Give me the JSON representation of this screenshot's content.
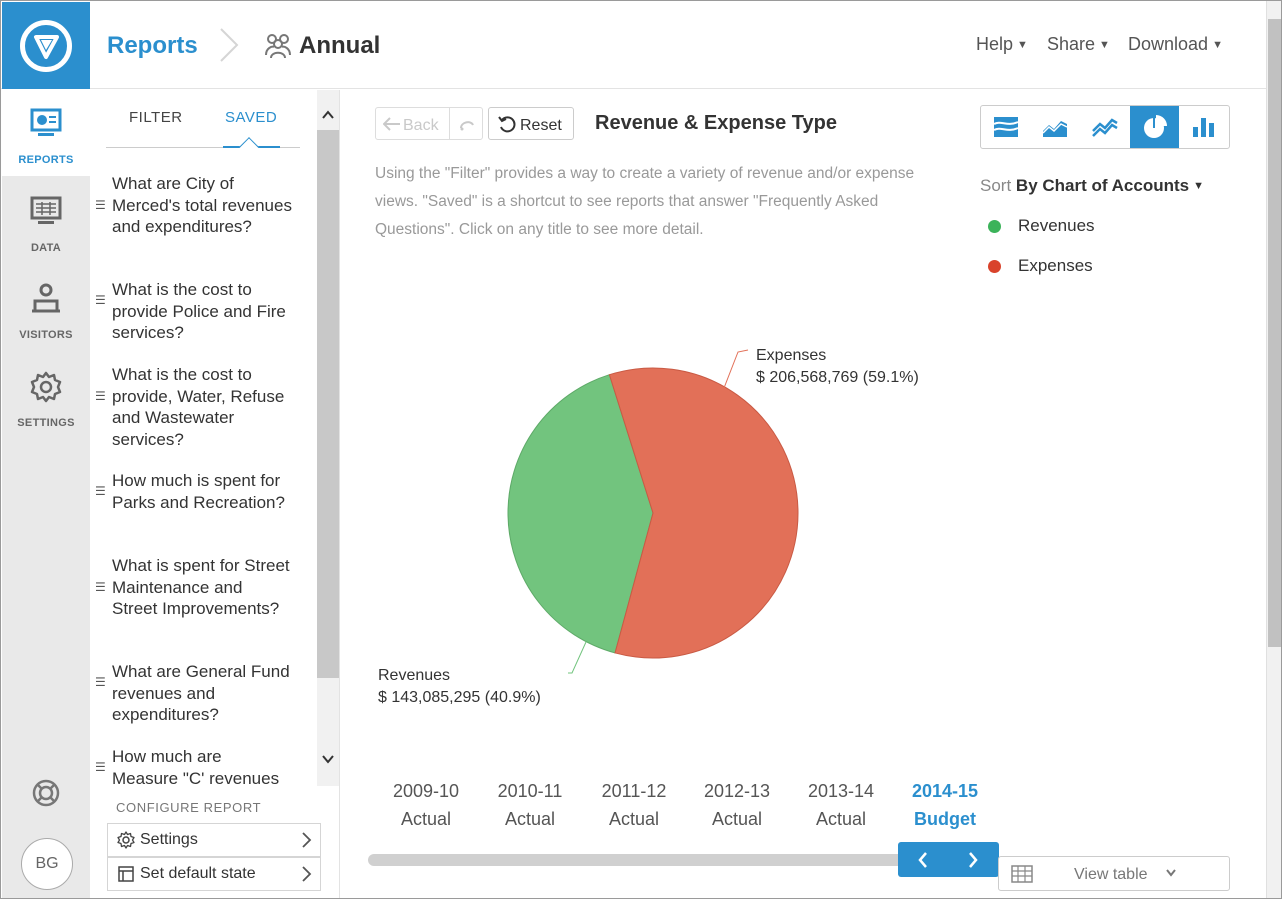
{
  "header": {
    "breadcrumb_root": "Reports",
    "breadcrumb_current": "Annual",
    "menus": [
      {
        "label": "Help"
      },
      {
        "label": "Share"
      },
      {
        "label": "Download"
      }
    ]
  },
  "leftnav": {
    "items": [
      {
        "label": "REPORTS",
        "icon": "reports-icon",
        "active": true
      },
      {
        "label": "DATA",
        "icon": "data-icon",
        "active": false
      },
      {
        "label": "VISITORS",
        "icon": "visitors-icon",
        "active": false
      },
      {
        "label": "SETTINGS",
        "icon": "gear-icon",
        "active": false
      }
    ],
    "avatar_initials": "BG"
  },
  "side": {
    "tabs": [
      {
        "label": "FILTER",
        "active": false
      },
      {
        "label": "SAVED",
        "active": true
      }
    ],
    "questions": [
      "What are City of Merced's total revenues and expenditures?",
      "What is the cost to provide Police and Fire services?",
      "What is the cost to provide, Water, Refuse and Wastewater services?",
      "How much is spent for Parks and Recreation?",
      "What is spent for Street Maintenance and Street Improvements?",
      "What are General Fund revenues and expenditures?",
      "How much are Measure \"C' revenues"
    ],
    "configure_heading": "CONFIGURE REPORT",
    "configure_buttons": [
      {
        "label": "Settings"
      },
      {
        "label": "Set default state"
      }
    ]
  },
  "toolbar": {
    "back_label": "Back",
    "reset_label": "Reset",
    "chart_title": "Revenue & Expense Type",
    "description": "Using the \"Filter\" provides a way to create a variety of revenue and/or expense views. \"Saved\" is a shortcut to see reports that answer \"Frequently Asked Questions\". Click on any title to see more detail.",
    "chart_types": [
      "stacked-area-icon",
      "area-icon",
      "line-icon",
      "pie-icon",
      "bar-icon"
    ],
    "active_chart_type": "pie-icon"
  },
  "sort": {
    "prefix": "Sort",
    "value": "By Chart of Accounts"
  },
  "chart_data": {
    "type": "pie",
    "series": [
      {
        "name": "Revenues",
        "value": 143085295,
        "label_value": "$ 143,085,295 (40.9%)",
        "percent": 40.9,
        "color": "#72c47e"
      },
      {
        "name": "Expenses",
        "value": 206568769,
        "label_value": "$ 206,568,769 (59.1%)",
        "percent": 59.1,
        "color": "#e27058"
      }
    ],
    "legend": [
      "Revenues",
      "Expenses"
    ],
    "legend_placement": "top-right"
  },
  "timeline": {
    "years": [
      {
        "year": "2009-10",
        "kind": "Actual",
        "active": false
      },
      {
        "year": "2010-11",
        "kind": "Actual",
        "active": false
      },
      {
        "year": "2011-12",
        "kind": "Actual",
        "active": false
      },
      {
        "year": "2012-13",
        "kind": "Actual",
        "active": false
      },
      {
        "year": "2013-14",
        "kind": "Actual",
        "active": false
      },
      {
        "year": "2014-15",
        "kind": "Budget",
        "active": true
      }
    ],
    "view_table_label": "View table"
  },
  "colors": {
    "accent": "#2b8fce",
    "revenue": "#72c47e",
    "expense": "#e27058"
  }
}
